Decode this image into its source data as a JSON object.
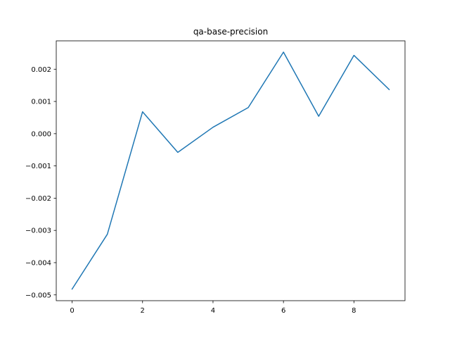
{
  "chart_data": {
    "type": "line",
    "title": "qa-base-precision",
    "xlabel": "",
    "ylabel": "",
    "xlim": [
      -0.45,
      9.45
    ],
    "ylim": [
      -0.00518,
      0.00288
    ],
    "x_ticks": [
      0,
      2,
      4,
      6,
      8
    ],
    "x_tick_labels": [
      "0",
      "2",
      "4",
      "6",
      "8"
    ],
    "y_ticks": [
      -0.005,
      -0.004,
      -0.003,
      -0.002,
      -0.001,
      0.0,
      0.001,
      0.002
    ],
    "y_tick_labels": [
      "−0.005",
      "−0.004",
      "−0.003",
      "−0.002",
      "−0.001",
      "0.000",
      "0.001",
      "0.002"
    ],
    "grid": false,
    "series": [
      {
        "color": "#1f77b4",
        "x": [
          0,
          1,
          2,
          3,
          4,
          5,
          6,
          7,
          8,
          9
        ],
        "y": [
          -0.00482,
          -0.00312,
          0.00068,
          -0.00058,
          0.0002,
          0.00081,
          0.00253,
          0.00054,
          0.00243,
          0.00137
        ]
      }
    ]
  }
}
